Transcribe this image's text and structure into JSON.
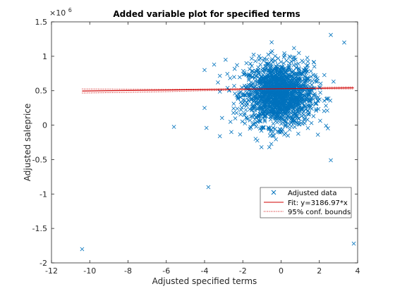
{
  "chart_data": {
    "type": "scatter",
    "title": "Added variable plot for specified terms",
    "xlabel": "Adjusted specified terms",
    "ylabel": "Adjusted saleprice",
    "y_exponent_label": "×10",
    "y_exponent_power": "6",
    "y_scale": 1000000,
    "xlim": [
      -12,
      4
    ],
    "ylim": [
      -2000000,
      1500000
    ],
    "x_ticks": [
      -12,
      -10,
      -8,
      -6,
      -4,
      -2,
      0,
      2,
      4
    ],
    "x_tick_labels": [
      "-12",
      "-10",
      "-8",
      "-6",
      "-4",
      "-2",
      "0",
      "2",
      "4"
    ],
    "y_ticks": [
      -2000000,
      -1500000,
      -1000000,
      -500000,
      0,
      500000,
      1000000,
      1500000
    ],
    "y_tick_labels": [
      "-2",
      "-1.5",
      "-1",
      "-0.5",
      "0",
      "0.5",
      "1",
      "1.5"
    ],
    "grid": false,
    "legend_position": "bottom-right",
    "colors": {
      "data": "#0072BD",
      "fit": "#D00000",
      "bounds": "#D00000"
    },
    "series": [
      {
        "name": "Adjusted data",
        "kind": "scatter",
        "marker": "x",
        "cluster": {
          "x_mean": -0.1,
          "x_sd": 0.9,
          "x_min": -3.2,
          "x_max": 3.0,
          "y_mean": 450000,
          "y_sd": 230000,
          "y_min": -320000,
          "y_max": 1350000,
          "n": 1800
        },
        "outliers": [
          {
            "x": -10.4,
            "y": -1800000
          },
          {
            "x": 3.8,
            "y": -1720000
          },
          {
            "x": 2.6,
            "y": -510000
          },
          {
            "x": -3.8,
            "y": -900000
          },
          {
            "x": -5.6,
            "y": -25000
          },
          {
            "x": -4.0,
            "y": 800000
          },
          {
            "x": -4.0,
            "y": 250000
          },
          {
            "x": -3.5,
            "y": 880000
          },
          {
            "x": -3.2,
            "y": -160000
          },
          {
            "x": -3.9,
            "y": -40000
          },
          {
            "x": -2.6,
            "y": -100000
          },
          {
            "x": 3.3,
            "y": 1200000
          },
          {
            "x": 2.6,
            "y": 1310000
          },
          {
            "x": -3.3,
            "y": 620000
          },
          {
            "x": -2.9,
            "y": 950000
          }
        ]
      },
      {
        "name": "Fit: y=3186.97*x",
        "kind": "line",
        "x": [
          -10.4,
          3.8
        ],
        "y": [
          496000,
          541000
        ]
      },
      {
        "name": "95% conf. bounds",
        "kind": "band",
        "x": [
          -10.4,
          -8,
          -6,
          -4,
          -2,
          0,
          2,
          3.8
        ],
        "upper": [
          526000,
          522000,
          520000,
          524000,
          530000,
          534000,
          548000,
          556000
        ],
        "lower": [
          466000,
          476000,
          486000,
          500000,
          506000,
          512000,
          526000,
          526000
        ]
      }
    ]
  }
}
